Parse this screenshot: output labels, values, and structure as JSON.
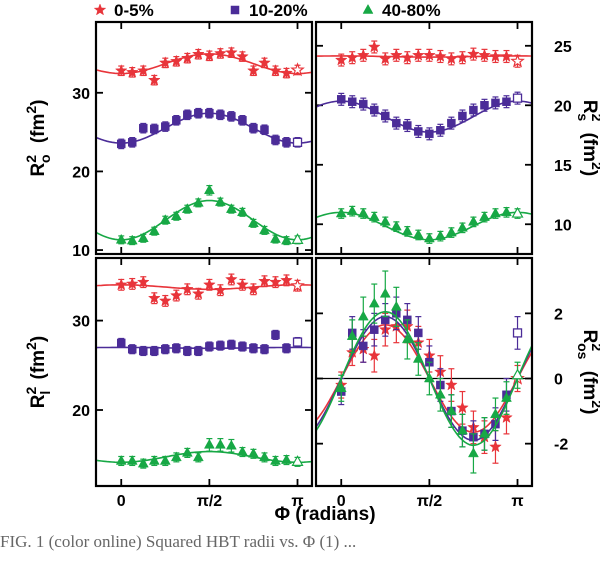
{
  "colors": {
    "central": "#e8343a",
    "mid": "#4b2c98",
    "peripheral": "#17a845",
    "axis": "#000000"
  },
  "legend": [
    {
      "label": "0-5%",
      "marker": "star",
      "color": "#e8343a"
    },
    {
      "label": "10-20%",
      "marker": "square",
      "color": "#4b2c98"
    },
    {
      "label": "40-80%",
      "marker": "triangle",
      "color": "#17a845"
    }
  ],
  "xaxis": {
    "title": "Φ (radians)",
    "ticks": [
      {
        "value": 0,
        "label": "0"
      },
      {
        "value": 1.5708,
        "label": "π/2"
      },
      {
        "value": 3.1416,
        "label": "π"
      }
    ],
    "range": [
      -0.45,
      3.4
    ]
  },
  "caption": "FIG. 1 (color online) Squared HBT radii vs. Φ (1) ...",
  "chart_data": [
    {
      "id": "ro",
      "type": "scatter",
      "ylabel_main": "R",
      "ylabel_sup": "2",
      "ylabel_sub": "o",
      "ylabel_unit": "(fm",
      "ylabel_unit_sup": "2",
      "ylabel_tail": ")",
      "ylim": [
        9.5,
        39
      ],
      "yticks": [
        10,
        20,
        30
      ],
      "tick_side": "left",
      "series": [
        {
          "name": "0-5%",
          "x": [
            0.0,
            0.196,
            0.393,
            0.589,
            0.785,
            0.982,
            1.178,
            1.374,
            1.571,
            1.767,
            1.963,
            2.16,
            2.356,
            2.553,
            2.749,
            2.945,
            3.142
          ],
          "y": [
            32.8,
            32.6,
            32.8,
            31.6,
            33.8,
            34.0,
            34.4,
            34.9,
            34.7,
            35.0,
            35.1,
            34.6,
            32.8,
            33.8,
            32.8,
            32.5,
            32.9
          ],
          "err": [
            0.6,
            0.6,
            0.6,
            0.6,
            0.6,
            0.6,
            0.6,
            0.6,
            0.6,
            0.6,
            0.6,
            0.6,
            0.6,
            0.6,
            0.6,
            0.6,
            0.6
          ],
          "fit": {
            "mean": 33.7,
            "amp": -1.25,
            "phase": 0
          }
        },
        {
          "name": "10-20%",
          "x": [
            0.0,
            0.196,
            0.393,
            0.589,
            0.785,
            0.982,
            1.178,
            1.374,
            1.571,
            1.767,
            1.963,
            2.16,
            2.356,
            2.553,
            2.749,
            2.945,
            3.142
          ],
          "y": [
            23.5,
            23.7,
            25.5,
            25.4,
            25.7,
            26.5,
            27.2,
            27.4,
            27.4,
            27.2,
            27.0,
            26.5,
            25.5,
            25.3,
            24.0,
            23.7,
            23.7
          ],
          "err": [
            0.6,
            0.6,
            0.6,
            0.6,
            0.6,
            0.6,
            0.6,
            0.6,
            0.6,
            0.6,
            0.6,
            0.6,
            0.6,
            0.6,
            0.6,
            0.6,
            0.6
          ],
          "fit": {
            "mean": 25.5,
            "amp": -1.9,
            "phase": 0
          }
        },
        {
          "name": "40-80%",
          "x": [
            0.0,
            0.196,
            0.393,
            0.589,
            0.785,
            0.982,
            1.178,
            1.374,
            1.571,
            1.767,
            1.963,
            2.16,
            2.356,
            2.553,
            2.749,
            2.945,
            3.142
          ],
          "y": [
            11.3,
            11.2,
            11.5,
            12.4,
            13.8,
            14.3,
            15.2,
            16.0,
            17.6,
            16.1,
            15.2,
            14.8,
            13.4,
            12.5,
            11.4,
            11.2,
            11.3
          ],
          "err": [
            0.5,
            0.5,
            0.5,
            0.5,
            0.5,
            0.5,
            0.5,
            0.5,
            0.6,
            0.5,
            0.5,
            0.5,
            0.5,
            0.5,
            0.5,
            0.5,
            0.5
          ],
          "fit": {
            "mean": 13.8,
            "amp": -2.5,
            "phase": 0
          }
        }
      ]
    },
    {
      "id": "rs",
      "type": "scatter",
      "ylabel_main": "R",
      "ylabel_sup": "2",
      "ylabel_sub": "s",
      "ylabel_unit": "(fm",
      "ylabel_unit_sup": "2",
      "ylabel_tail": ")",
      "ylim": [
        7.5,
        27
      ],
      "yticks": [
        10,
        15,
        20,
        25
      ],
      "tick_side": "right",
      "series": [
        {
          "name": "0-5%",
          "x": [
            0.0,
            0.196,
            0.393,
            0.589,
            0.785,
            0.982,
            1.178,
            1.374,
            1.571,
            1.767,
            1.963,
            2.16,
            2.356,
            2.553,
            2.749,
            2.945,
            3.142
          ],
          "y": [
            23.8,
            24.0,
            24.2,
            24.9,
            23.9,
            24.2,
            24.0,
            24.2,
            24.2,
            24.1,
            23.9,
            24.0,
            24.3,
            24.2,
            24.1,
            24.1,
            23.7
          ],
          "err": [
            0.5,
            0.5,
            0.5,
            0.5,
            0.5,
            0.5,
            0.5,
            0.5,
            0.5,
            0.5,
            0.5,
            0.5,
            0.5,
            0.5,
            0.5,
            0.5,
            0.5
          ],
          "fit": {
            "mean": 24.1,
            "amp": 0.05,
            "phase": 0
          }
        },
        {
          "name": "10-20%",
          "x": [
            0.0,
            0.196,
            0.393,
            0.589,
            0.785,
            0.982,
            1.178,
            1.374,
            1.571,
            1.767,
            1.963,
            2.16,
            2.356,
            2.553,
            2.749,
            2.945,
            3.142
          ],
          "y": [
            20.5,
            20.3,
            20.1,
            19.6,
            19.1,
            18.5,
            18.3,
            17.8,
            17.6,
            17.9,
            18.5,
            19.1,
            19.6,
            20.0,
            20.2,
            20.3,
            20.6
          ],
          "err": [
            0.5,
            0.5,
            0.5,
            0.5,
            0.5,
            0.5,
            0.5,
            0.5,
            0.5,
            0.5,
            0.5,
            0.5,
            0.5,
            0.5,
            0.5,
            0.5,
            0.5
          ],
          "fit": {
            "mean": 19.05,
            "amp": 1.3,
            "phase": 0
          }
        },
        {
          "name": "40-80%",
          "x": [
            0.0,
            0.196,
            0.393,
            0.589,
            0.785,
            0.982,
            1.178,
            1.374,
            1.571,
            1.767,
            1.963,
            2.16,
            2.356,
            2.553,
            2.749,
            2.945,
            3.142
          ],
          "y": [
            10.9,
            11.1,
            10.9,
            10.6,
            10.2,
            9.8,
            9.4,
            9.1,
            8.8,
            9.0,
            9.3,
            9.7,
            10.2,
            10.6,
            10.9,
            11.0,
            10.9
          ],
          "err": [
            0.4,
            0.4,
            0.4,
            0.4,
            0.4,
            0.4,
            0.4,
            0.4,
            0.4,
            0.4,
            0.4,
            0.4,
            0.4,
            0.4,
            0.4,
            0.4,
            0.4
          ],
          "fit": {
            "mean": 9.85,
            "amp": 1.15,
            "phase": 0
          }
        }
      ]
    },
    {
      "id": "rl",
      "type": "scatter",
      "ylabel_main": "R",
      "ylabel_sup": "2",
      "ylabel_sub": "l",
      "ylabel_unit": "(fm",
      "ylabel_unit_sup": "2",
      "ylabel_tail": ")",
      "ylim": [
        11.5,
        37
      ],
      "yticks": [
        20,
        30
      ],
      "tick_side": "left",
      "series": [
        {
          "name": "0-5%",
          "x": [
            0.0,
            0.196,
            0.393,
            0.589,
            0.785,
            0.982,
            1.178,
            1.374,
            1.571,
            1.767,
            1.963,
            2.16,
            2.356,
            2.553,
            2.749,
            2.945,
            3.142
          ],
          "y": [
            34.0,
            34.1,
            34.3,
            32.5,
            32.2,
            32.8,
            33.5,
            33.0,
            34.0,
            33.4,
            34.6,
            34.0,
            33.5,
            34.4,
            34.3,
            34.5,
            33.9
          ],
          "err": [
            0.6,
            0.6,
            0.6,
            0.6,
            0.6,
            0.6,
            0.6,
            0.6,
            0.6,
            0.6,
            0.6,
            0.6,
            0.6,
            0.6,
            0.6,
            0.6,
            0.6
          ],
          "fit": {
            "mean": 33.75,
            "amp": 0.25,
            "phase": 0
          }
        },
        {
          "name": "10-20%",
          "x": [
            0.0,
            0.196,
            0.393,
            0.589,
            0.785,
            0.982,
            1.178,
            1.374,
            1.571,
            1.767,
            1.963,
            2.16,
            2.356,
            2.553,
            2.749,
            2.945,
            3.142
          ],
          "y": [
            27.5,
            26.8,
            26.6,
            26.6,
            26.8,
            26.9,
            26.6,
            26.6,
            27.1,
            27.2,
            27.3,
            27.1,
            26.9,
            26.8,
            28.4,
            26.9,
            27.6
          ],
          "err": [
            0.5,
            0.5,
            0.5,
            0.5,
            0.5,
            0.5,
            0.5,
            0.5,
            0.5,
            0.5,
            0.5,
            0.5,
            0.5,
            0.5,
            0.5,
            0.5,
            0.5
          ],
          "fit": {
            "mean": 26.95,
            "amp": 0.05,
            "phase": 0
          }
        },
        {
          "name": "40-80%",
          "x": [
            0.0,
            0.196,
            0.393,
            0.589,
            0.785,
            0.982,
            1.178,
            1.374,
            1.571,
            1.767,
            1.963,
            2.16,
            2.356,
            2.553,
            2.749,
            2.945,
            3.142
          ],
          "y": [
            14.3,
            14.3,
            14.0,
            14.3,
            14.3,
            14.7,
            15.2,
            14.7,
            16.1,
            16.1,
            16.0,
            15.3,
            15.1,
            14.7,
            14.3,
            14.4,
            14.2
          ],
          "err": [
            0.5,
            0.5,
            0.5,
            0.5,
            0.5,
            0.5,
            0.5,
            0.5,
            0.7,
            0.7,
            0.7,
            0.5,
            0.5,
            0.5,
            0.5,
            0.5,
            0.5
          ],
          "fit": {
            "mean": 14.75,
            "amp": -0.6,
            "phase": 0
          }
        }
      ]
    },
    {
      "id": "ros",
      "type": "scatter",
      "ylabel_main": "R",
      "ylabel_sup": "2",
      "ylabel_sub": "os",
      "ylabel_unit": "(fm",
      "ylabel_unit_sup": "2",
      "ylabel_tail": ")",
      "ylim": [
        -3.3,
        3.7
      ],
      "yticks": [
        -2,
        0,
        2
      ],
      "tick_side": "right",
      "zero_line": true,
      "series": [
        {
          "name": "0-5%",
          "x": [
            0.0,
            0.196,
            0.393,
            0.589,
            0.785,
            0.982,
            1.178,
            1.374,
            1.571,
            1.767,
            1.963,
            2.16,
            2.356,
            2.553,
            2.749,
            2.945,
            3.142
          ],
          "y": [
            -0.2,
            0.8,
            0.9,
            0.7,
            1.5,
            1.6,
            1.6,
            1.1,
            0.7,
            0.2,
            -0.2,
            -0.9,
            -1.5,
            -1.8,
            -2.1,
            -1.2,
            0.0
          ],
          "err": [
            0.4,
            0.4,
            0.4,
            0.5,
            0.5,
            0.5,
            0.5,
            0.5,
            0.5,
            0.5,
            0.5,
            0.5,
            0.5,
            0.5,
            0.5,
            0.5,
            0.4
          ],
          "fit": {
            "mean": 0.0,
            "amp": 1.65,
            "phase": 0
          }
        },
        {
          "name": "10-20%",
          "x": [
            0.0,
            0.196,
            0.393,
            0.589,
            0.785,
            0.982,
            1.178,
            1.374,
            1.571,
            1.767,
            1.963,
            2.16,
            2.356,
            2.553,
            2.749,
            2.945,
            3.142
          ],
          "y": [
            -0.4,
            1.4,
            1.0,
            1.5,
            1.8,
            2.0,
            1.8,
            1.4,
            0.5,
            -0.2,
            -1.0,
            -1.6,
            -1.8,
            -1.7,
            -1.4,
            -0.5,
            1.4
          ],
          "err": [
            0.4,
            0.5,
            0.5,
            0.5,
            0.5,
            0.5,
            0.5,
            0.5,
            0.5,
            0.5,
            0.5,
            0.5,
            0.5,
            0.5,
            0.5,
            0.5,
            0.5
          ],
          "fit": {
            "mean": 0.0,
            "amp": 1.9,
            "phase": 0
          }
        },
        {
          "name": "40-80%",
          "x": [
            0.0,
            0.196,
            0.393,
            0.589,
            0.785,
            0.982,
            1.178,
            1.374,
            1.571,
            1.767,
            1.963,
            2.16,
            2.356,
            2.553,
            2.749,
            2.945,
            3.142
          ],
          "y": [
            -0.3,
            1.3,
            1.9,
            2.3,
            2.6,
            2.2,
            1.2,
            0.6,
            0.0,
            -0.5,
            -1.0,
            -1.6,
            -2.3,
            -1.7,
            -1.1,
            -0.6,
            0.1
          ],
          "err": [
            0.4,
            0.5,
            0.6,
            0.6,
            0.7,
            0.6,
            0.6,
            0.5,
            0.5,
            0.5,
            0.5,
            0.5,
            0.6,
            0.5,
            0.5,
            0.5,
            0.4
          ],
          "fit": {
            "mean": 0.0,
            "amp": 2.05,
            "phase": 0
          }
        }
      ]
    }
  ]
}
